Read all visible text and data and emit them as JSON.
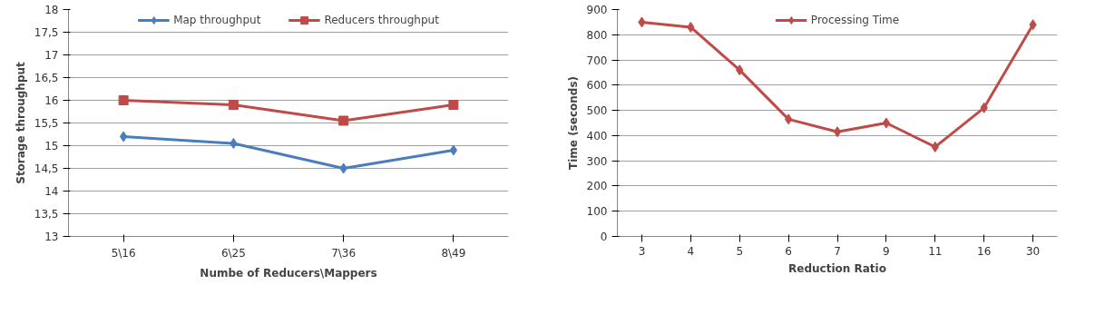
{
  "chart_data": [
    {
      "type": "line",
      "xlabel": "Numbe of Reducers\\Mappers",
      "ylabel": "Storage throughput",
      "categories": [
        "5\\16",
        "6\\25",
        "7\\36",
        "8\\49"
      ],
      "series": [
        {
          "name": "Map throughput",
          "color": "#4a7ebb",
          "marker": "diamond",
          "values": [
            15.2,
            15.05,
            14.5,
            14.9
          ]
        },
        {
          "name": "Reducers throughput",
          "color": "#be4b48",
          "marker": "square",
          "values": [
            16.0,
            15.9,
            15.55,
            15.9
          ]
        }
      ],
      "ylim": [
        13,
        18
      ],
      "yticks": [
        13,
        {
          "value": 13.5,
          "label": "13,5"
        },
        14,
        {
          "value": 14.5,
          "label": "14,5"
        },
        15,
        {
          "value": 15.5,
          "label": "15,5"
        },
        16,
        {
          "value": 16.5,
          "label": "16,5"
        },
        17,
        {
          "value": 17.5,
          "label": "17,5"
        },
        18
      ],
      "grid": "y",
      "legend": "top",
      "line_style": "solid"
    },
    {
      "type": "line",
      "xlabel": "Reduction Ratio",
      "ylabel": "Time (seconds)",
      "categories": [
        "3",
        "4",
        "5",
        "6",
        "7",
        "9",
        "11",
        "16",
        "30"
      ],
      "series": [
        {
          "name": "Processing Time",
          "color": "#be4b48",
          "marker": "diamond",
          "values": [
            850,
            830,
            660,
            465,
            415,
            450,
            355,
            510,
            840
          ]
        }
      ],
      "ylim": [
        0,
        900
      ],
      "yticks": [
        0,
        100,
        200,
        300,
        400,
        500,
        600,
        700,
        800,
        900
      ],
      "grid": "y",
      "legend": "top",
      "line_style": "solid"
    }
  ]
}
